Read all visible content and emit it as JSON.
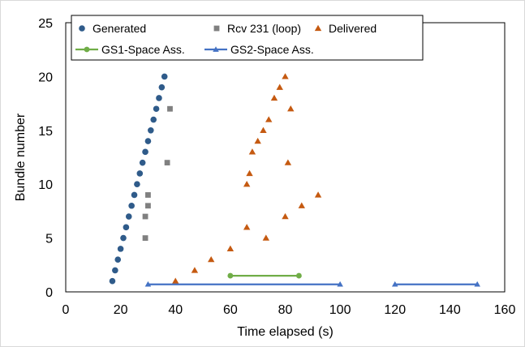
{
  "chart_data": {
    "type": "scatter",
    "title": "",
    "xlabel": "Time elapsed (s)",
    "ylabel": "Bundle number",
    "xlim": [
      0,
      160
    ],
    "ylim": [
      0,
      25
    ],
    "xticks": [
      0,
      20,
      40,
      60,
      80,
      100,
      120,
      140,
      160
    ],
    "yticks": [
      0,
      5,
      10,
      15,
      20,
      25
    ],
    "grid": false,
    "legend_position": "top",
    "series": [
      {
        "name": "Generated",
        "marker": "circle",
        "color": "#2f5b8a",
        "points": [
          [
            17,
            1
          ],
          [
            18,
            2
          ],
          [
            19,
            3
          ],
          [
            20,
            4
          ],
          [
            21,
            5
          ],
          [
            22,
            6
          ],
          [
            23,
            7
          ],
          [
            24,
            8
          ],
          [
            25,
            9
          ],
          [
            26,
            10
          ],
          [
            27,
            11
          ],
          [
            28,
            12
          ],
          [
            29,
            13
          ],
          [
            30,
            14
          ],
          [
            31,
            15
          ],
          [
            32,
            16
          ],
          [
            33,
            17
          ],
          [
            34,
            18
          ],
          [
            35,
            19
          ],
          [
            36,
            20
          ]
        ]
      },
      {
        "name": "Rcv 231 (loop)",
        "marker": "square",
        "color": "#808080",
        "points": [
          [
            29,
            5
          ],
          [
            29,
            7
          ],
          [
            30,
            8
          ],
          [
            30,
            9
          ],
          [
            37,
            12
          ],
          [
            38,
            17
          ]
        ]
      },
      {
        "name": "Delivered",
        "marker": "triangle",
        "color": "#c55a11",
        "points": [
          [
            40,
            1
          ],
          [
            47,
            2
          ],
          [
            53,
            3
          ],
          [
            60,
            4
          ],
          [
            73,
            5
          ],
          [
            66,
            6
          ],
          [
            80,
            7
          ],
          [
            86,
            8
          ],
          [
            92,
            9
          ],
          [
            66,
            10
          ],
          [
            67,
            11
          ],
          [
            81,
            12
          ],
          [
            68,
            13
          ],
          [
            70,
            14
          ],
          [
            72,
            15
          ],
          [
            74,
            16
          ],
          [
            82,
            17
          ],
          [
            76,
            18
          ],
          [
            78,
            19
          ],
          [
            80,
            20
          ]
        ]
      },
      {
        "name": "GS1-Space Ass.",
        "marker": "circle",
        "line": true,
        "color": "#70ad47",
        "segments": [
          [
            [
              60,
              1.5
            ],
            [
              85,
              1.5
            ]
          ]
        ]
      },
      {
        "name": "GS2-Space Ass.",
        "marker": "triangle",
        "line": true,
        "color": "#4472c4",
        "segments": [
          [
            [
              30,
              0.7
            ],
            [
              100,
              0.7
            ]
          ],
          [
            [
              120,
              0.7
            ],
            [
              150,
              0.7
            ]
          ]
        ]
      }
    ]
  }
}
